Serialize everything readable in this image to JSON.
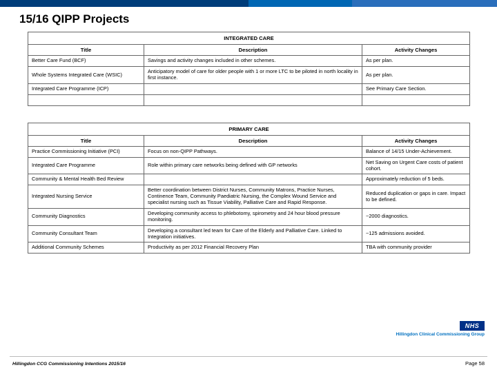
{
  "title": "15/16 QIPP Projects",
  "table1": {
    "section": "INTEGRATED CARE",
    "headers": [
      "Title",
      "Description",
      "Activity Changes"
    ],
    "rows": [
      [
        "Better Care Fund (BCF)",
        "Savings and activity changes included in other schemes.",
        "As per plan."
      ],
      [
        "Whole Systems Integrated Care (WSIC)",
        "Anticipatory model of care for older people with 1 or more LTC to be piloted in north locality in first instance.",
        "As per plan."
      ],
      [
        "Integrated Care Programme (ICP)",
        "",
        "See Primary Care Section."
      ],
      [
        "",
        "",
        ""
      ]
    ]
  },
  "table2": {
    "section": "PRIMARY CARE",
    "headers": [
      "Title",
      "Description",
      "Activity Changes"
    ],
    "rows": [
      [
        "Practice Commissioning Initiative (PCI)",
        "Focus on non-QIPP Pathways.",
        "Balance of 14/15 Under-Achievement."
      ],
      [
        "Integrated Care Programme",
        "Role within primary care networks being defined with GP networks",
        "Net Saving on Urgent Care costs of patient cohort."
      ],
      [
        "Community & Mental Health Bed Review",
        "",
        "Approximately reduction of 5 beds."
      ],
      [
        "Integrated Nursing Service",
        "Better coordination between District Nurses, Community Matrons, Practice Nurses, Continence Team, Community Paediatric Nursing, the Complex Wound Service and specialist nursing such as Tissue Viability, Palliative Care and Rapid Response.",
        "Reduced duplication or gaps in care. Impact to be defined."
      ],
      [
        "Community Diagnostics",
        "Developing community access to phlebotomy, spirometry and 24 hour blood pressure monitoring.",
        "~2000 diagnostics."
      ],
      [
        "Community Consultant Team",
        "Developing a consultant led team for Care of the Elderly and Palliative Care. Linked to Integration initiatives.",
        "~125 admissions avoided."
      ],
      [
        "Additional Community Schemes",
        "Productivity as per 2012 Financial Recovery Plan",
        "TBA with community provider"
      ]
    ]
  },
  "nhs": {
    "logo": "NHS",
    "sub": "Hillingdon Clinical Commissioning Group"
  },
  "footer": {
    "left": "Hillingdon CCG Commissioning Intentions 2015/16",
    "right": "Page 58"
  }
}
